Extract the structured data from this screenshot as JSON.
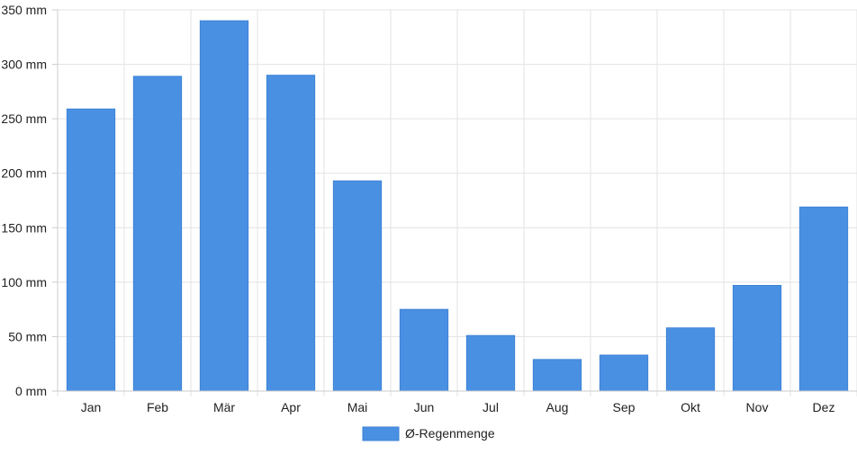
{
  "chart_data": {
    "type": "bar",
    "categories": [
      "Jan",
      "Feb",
      "Mär",
      "Apr",
      "Mai",
      "Jun",
      "Jul",
      "Aug",
      "Sep",
      "Okt",
      "Nov",
      "Dez"
    ],
    "series": [
      {
        "name": "Ø-Regenmenge",
        "values": [
          259,
          289,
          340,
          290,
          193,
          75,
          51,
          29,
          33,
          58,
          97,
          169
        ],
        "color": "#4a90e2"
      }
    ],
    "yticks": [
      "0 mm",
      "50 mm",
      "100 mm",
      "150 mm",
      "200 mm",
      "250 mm",
      "300 mm",
      "350 mm"
    ],
    "ylim": [
      0,
      350
    ],
    "grid": true,
    "legend_position": "bottom"
  }
}
